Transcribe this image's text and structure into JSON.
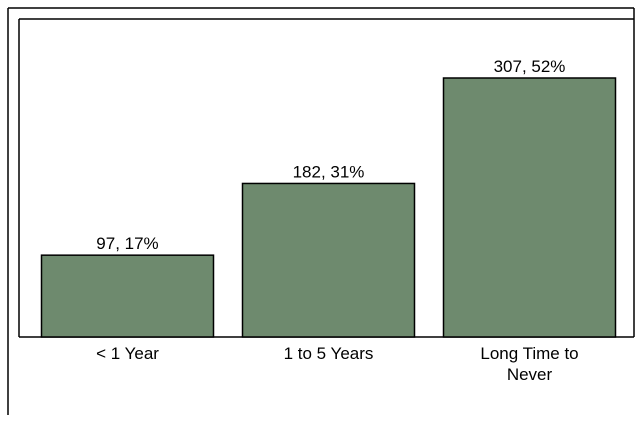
{
  "chart_data": {
    "type": "bar",
    "categories": [
      "< 1 Year",
      "1 to 5 Years",
      "Long Time to Never"
    ],
    "values": [
      97,
      182,
      307
    ],
    "value_labels": [
      "97, 17%",
      "182, 31%",
      "307, 52%"
    ],
    "color": "#6e8a6e"
  }
}
